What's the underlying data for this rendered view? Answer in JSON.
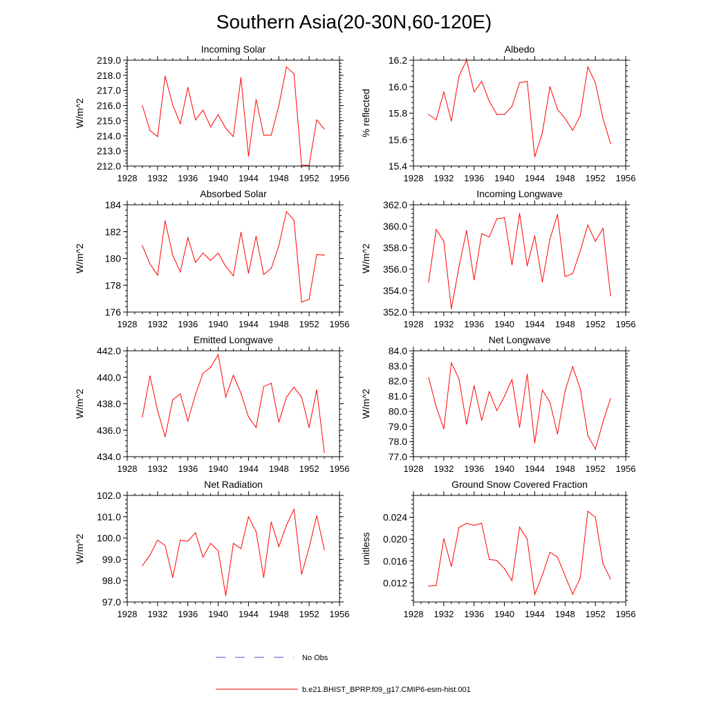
{
  "title": "Southern Asia(20-30N,60-120E)",
  "colors": {
    "series": "#ff0000",
    "obs": "#4a4ac8",
    "axis": "#000000"
  },
  "legend": {
    "obs_label": "No Obs",
    "model_label": "b.e21.BHIST_BPRP.f09_g17.CMIP6-esm-hist.001"
  },
  "chart_data": [
    {
      "type": "line",
      "title": "Incoming Solar",
      "xlabel": "",
      "ylabel": "W/m^2",
      "xlim": [
        1928,
        1956
      ],
      "ylim": [
        212,
        219
      ],
      "yticks": [
        212,
        213,
        214,
        215,
        216,
        217,
        218,
        219
      ],
      "ydec": 1,
      "xticks": [
        1928,
        1932,
        1936,
        1940,
        1944,
        1948,
        1952,
        1956
      ],
      "x": [
        1930,
        1931,
        1932,
        1933,
        1934,
        1935,
        1936,
        1937,
        1938,
        1939,
        1940,
        1941,
        1942,
        1943,
        1944,
        1945,
        1946,
        1947,
        1948,
        1949,
        1950,
        1951,
        1952,
        1953,
        1954
      ],
      "values": [
        216.0,
        214.35,
        213.95,
        217.95,
        216.05,
        214.8,
        217.2,
        215.05,
        215.7,
        214.6,
        215.4,
        214.5,
        213.95,
        217.85,
        212.65,
        216.4,
        214.05,
        214.05,
        216.0,
        218.55,
        218.1,
        212.05,
        212.05,
        215.05,
        214.45
      ]
    },
    {
      "type": "line",
      "title": "Albedo",
      "xlabel": "",
      "ylabel": "% reflected",
      "xlim": [
        1928,
        1956
      ],
      "ylim": [
        15.4,
        16.2
      ],
      "yticks": [
        15.4,
        15.6,
        15.8,
        16.0,
        16.2
      ],
      "ydec": 1,
      "xticks": [
        1928,
        1932,
        1936,
        1940,
        1944,
        1948,
        1952,
        1956
      ],
      "x": [
        1930,
        1931,
        1932,
        1933,
        1934,
        1935,
        1936,
        1937,
        1938,
        1939,
        1940,
        1941,
        1942,
        1943,
        1944,
        1945,
        1946,
        1947,
        1948,
        1949,
        1950,
        1951,
        1952,
        1953,
        1954
      ],
      "values": [
        15.79,
        15.75,
        15.96,
        15.74,
        16.08,
        16.2,
        15.96,
        16.04,
        15.89,
        15.79,
        15.79,
        15.85,
        16.03,
        16.04,
        15.47,
        15.65,
        16.0,
        15.83,
        15.76,
        15.67,
        15.78,
        16.15,
        16.03,
        15.76,
        15.57
      ]
    },
    {
      "type": "line",
      "title": "Absorbed Solar",
      "xlabel": "",
      "ylabel": "W/m^2",
      "xlim": [
        1928,
        1956
      ],
      "ylim": [
        176,
        184
      ],
      "yticks": [
        176,
        178,
        180,
        182,
        184
      ],
      "ydec": 0,
      "xticks": [
        1928,
        1932,
        1936,
        1940,
        1944,
        1948,
        1952,
        1956
      ],
      "x": [
        1930,
        1931,
        1932,
        1933,
        1934,
        1935,
        1936,
        1937,
        1938,
        1939,
        1940,
        1941,
        1942,
        1943,
        1944,
        1945,
        1946,
        1947,
        1948,
        1949,
        1950,
        1951,
        1952,
        1953,
        1954
      ],
      "values": [
        180.95,
        179.6,
        178.75,
        182.8,
        180.25,
        179.0,
        181.55,
        179.7,
        180.4,
        179.85,
        180.4,
        179.4,
        178.7,
        181.95,
        178.9,
        181.65,
        178.8,
        179.25,
        180.95,
        183.5,
        182.85,
        176.75,
        176.95,
        180.3,
        180.25
      ]
    },
    {
      "type": "line",
      "title": "Incoming Longwave",
      "xlabel": "",
      "ylabel": "W/m^2",
      "xlim": [
        1928,
        1956
      ],
      "ylim": [
        352,
        362
      ],
      "yticks": [
        352,
        354,
        356,
        358,
        360,
        362
      ],
      "ydec": 1,
      "xticks": [
        1928,
        1932,
        1936,
        1940,
        1944,
        1948,
        1952,
        1956
      ],
      "x": [
        1930,
        1931,
        1932,
        1933,
        1934,
        1935,
        1936,
        1937,
        1938,
        1939,
        1940,
        1941,
        1942,
        1943,
        1944,
        1945,
        1946,
        1947,
        1948,
        1949,
        1950,
        1951,
        1952,
        1953,
        1954
      ],
      "values": [
        354.8,
        359.7,
        358.6,
        352.3,
        356.2,
        359.6,
        355.0,
        359.3,
        359.0,
        360.7,
        360.8,
        356.4,
        361.2,
        356.3,
        359.1,
        354.8,
        358.8,
        361.1,
        355.3,
        355.6,
        357.7,
        360.1,
        358.6,
        359.8,
        353.5
      ]
    },
    {
      "type": "line",
      "title": "Emitted Longwave",
      "xlabel": "",
      "ylabel": "W/m^2",
      "xlim": [
        1928,
        1956
      ],
      "ylim": [
        434,
        442
      ],
      "yticks": [
        434,
        436,
        438,
        440,
        442
      ],
      "ydec": 1,
      "xticks": [
        1928,
        1932,
        1936,
        1940,
        1944,
        1948,
        1952,
        1956
      ],
      "x": [
        1930,
        1931,
        1932,
        1933,
        1934,
        1935,
        1936,
        1937,
        1938,
        1939,
        1940,
        1941,
        1942,
        1943,
        1944,
        1945,
        1946,
        1947,
        1948,
        1949,
        1950,
        1951,
        1952,
        1953,
        1954
      ],
      "values": [
        437.0,
        440.1,
        437.5,
        435.5,
        438.3,
        438.75,
        436.7,
        438.7,
        440.3,
        440.75,
        441.7,
        438.5,
        440.15,
        438.8,
        437.0,
        436.2,
        439.3,
        439.55,
        436.6,
        438.5,
        439.25,
        438.5,
        436.2,
        439.05,
        434.3
      ]
    },
    {
      "type": "line",
      "title": "Net Longwave",
      "xlabel": "",
      "ylabel": "W/m^2",
      "xlim": [
        1928,
        1956
      ],
      "ylim": [
        77,
        84
      ],
      "yticks": [
        77,
        78,
        79,
        80,
        81,
        82,
        83,
        84
      ],
      "ydec": 1,
      "xticks": [
        1928,
        1932,
        1936,
        1940,
        1944,
        1948,
        1952,
        1956
      ],
      "x": [
        1930,
        1931,
        1932,
        1933,
        1934,
        1935,
        1936,
        1937,
        1938,
        1939,
        1940,
        1941,
        1942,
        1943,
        1944,
        1945,
        1946,
        1947,
        1948,
        1949,
        1950,
        1951,
        1952,
        1953,
        1954
      ],
      "values": [
        82.25,
        80.3,
        78.85,
        83.2,
        82.15,
        79.15,
        81.7,
        79.4,
        81.3,
        80.05,
        81.0,
        82.1,
        78.95,
        82.45,
        77.9,
        81.4,
        80.6,
        78.5,
        81.35,
        82.95,
        81.5,
        78.4,
        77.5,
        79.3,
        80.85
      ]
    },
    {
      "type": "line",
      "title": "Net Radiation",
      "xlabel": "",
      "ylabel": "W/m^2",
      "xlim": [
        1928,
        1956
      ],
      "ylim": [
        97,
        102
      ],
      "yticks": [
        97,
        98,
        99,
        100,
        101,
        102
      ],
      "ydec": 1,
      "xticks": [
        1928,
        1932,
        1936,
        1940,
        1944,
        1948,
        1952,
        1956
      ],
      "x": [
        1930,
        1931,
        1932,
        1933,
        1934,
        1935,
        1936,
        1937,
        1938,
        1939,
        1940,
        1941,
        1942,
        1943,
        1944,
        1945,
        1946,
        1947,
        1948,
        1949,
        1950,
        1951,
        1952,
        1953,
        1954
      ],
      "values": [
        98.7,
        99.2,
        99.9,
        99.65,
        98.15,
        99.9,
        99.85,
        100.25,
        99.1,
        99.75,
        99.4,
        97.3,
        99.75,
        99.5,
        101.0,
        100.3,
        98.15,
        100.75,
        99.6,
        100.6,
        101.35,
        98.3,
        99.55,
        101.05,
        99.45
      ]
    },
    {
      "type": "line",
      "title": "Ground Snow Covered Fraction",
      "xlabel": "",
      "ylabel": "unitless",
      "xlim": [
        1928,
        1956
      ],
      "ylim": [
        0.0085,
        0.028
      ],
      "yticks": [
        0.012,
        0.016,
        0.02,
        0.024
      ],
      "ydec": 3,
      "xticks": [
        1928,
        1932,
        1936,
        1940,
        1944,
        1948,
        1952,
        1956
      ],
      "x": [
        1930,
        1931,
        1932,
        1933,
        1934,
        1935,
        1936,
        1937,
        1938,
        1939,
        1940,
        1941,
        1942,
        1943,
        1944,
        1945,
        1946,
        1947,
        1948,
        1949,
        1950,
        1951,
        1952,
        1953,
        1954
      ],
      "values": [
        0.0114,
        0.0115,
        0.0201,
        0.015,
        0.0221,
        0.0229,
        0.0225,
        0.0229,
        0.0163,
        0.0161,
        0.0146,
        0.0124,
        0.0222,
        0.02,
        0.0099,
        0.0134,
        0.0176,
        0.0167,
        0.0133,
        0.0099,
        0.0129,
        0.0251,
        0.024,
        0.0155,
        0.0127
      ]
    }
  ]
}
